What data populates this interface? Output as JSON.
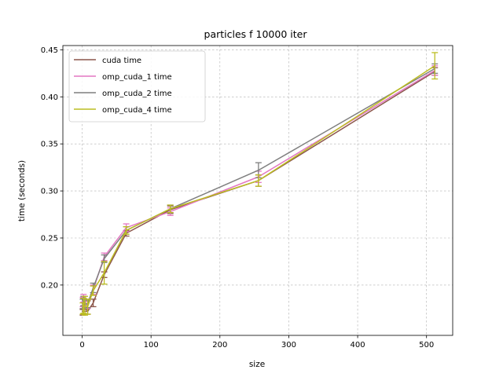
{
  "chart_data": {
    "type": "line",
    "title": "particles f 10000 iter",
    "xlabel": "size",
    "ylabel": "time (seconds)",
    "xlim": [
      -28,
      538
    ],
    "ylim": [
      0.1465,
      0.4545
    ],
    "xticks": [
      0,
      100,
      200,
      300,
      400,
      500
    ],
    "yticks": [
      0.2,
      0.25,
      0.3,
      0.35,
      0.4,
      0.45
    ],
    "xtick_labels": [
      "0",
      "100",
      "200",
      "300",
      "400",
      "500"
    ],
    "ytick_labels": [
      "0.20",
      "0.25",
      "0.30",
      "0.35",
      "0.40",
      "0.45"
    ],
    "grid": true,
    "legend_position": "upper-left",
    "x": [
      1,
      2,
      4,
      8,
      16,
      32,
      64,
      128,
      256,
      512
    ],
    "series": [
      {
        "name": "cuda time",
        "color": "#8c564b",
        "values": [
          0.171,
          0.182,
          0.176,
          0.172,
          0.181,
          0.211,
          0.255,
          0.28,
          0.311,
          0.427
        ],
        "errors": [
          0.003,
          0.004,
          0.004,
          0.003,
          0.004,
          0.003,
          0.003,
          0.004,
          0.006,
          0.004
        ]
      },
      {
        "name": "omp_cuda_1 time",
        "color": "#e377c2",
        "values": [
          0.182,
          0.186,
          0.18,
          0.179,
          0.195,
          0.23,
          0.261,
          0.278,
          0.315,
          0.428
        ],
        "errors": [
          0.005,
          0.004,
          0.004,
          0.004,
          0.005,
          0.004,
          0.004,
          0.004,
          0.006,
          0.005
        ]
      },
      {
        "name": "omp_cuda_2 time",
        "color": "#7f7f7f",
        "values": [
          0.18,
          0.183,
          0.18,
          0.18,
          0.197,
          0.228,
          0.258,
          0.281,
          0.322,
          0.43
        ],
        "errors": [
          0.005,
          0.005,
          0.004,
          0.004,
          0.005,
          0.004,
          0.004,
          0.004,
          0.008,
          0.005
        ]
      },
      {
        "name": "omp_cuda_4 time",
        "color": "#bcbd22",
        "values": [
          0.175,
          0.178,
          0.178,
          0.177,
          0.194,
          0.213,
          0.258,
          0.281,
          0.311,
          0.433
        ],
        "errors": [
          0.006,
          0.008,
          0.01,
          0.008,
          0.005,
          0.012,
          0.004,
          0.004,
          0.006,
          0.014
        ]
      }
    ]
  }
}
